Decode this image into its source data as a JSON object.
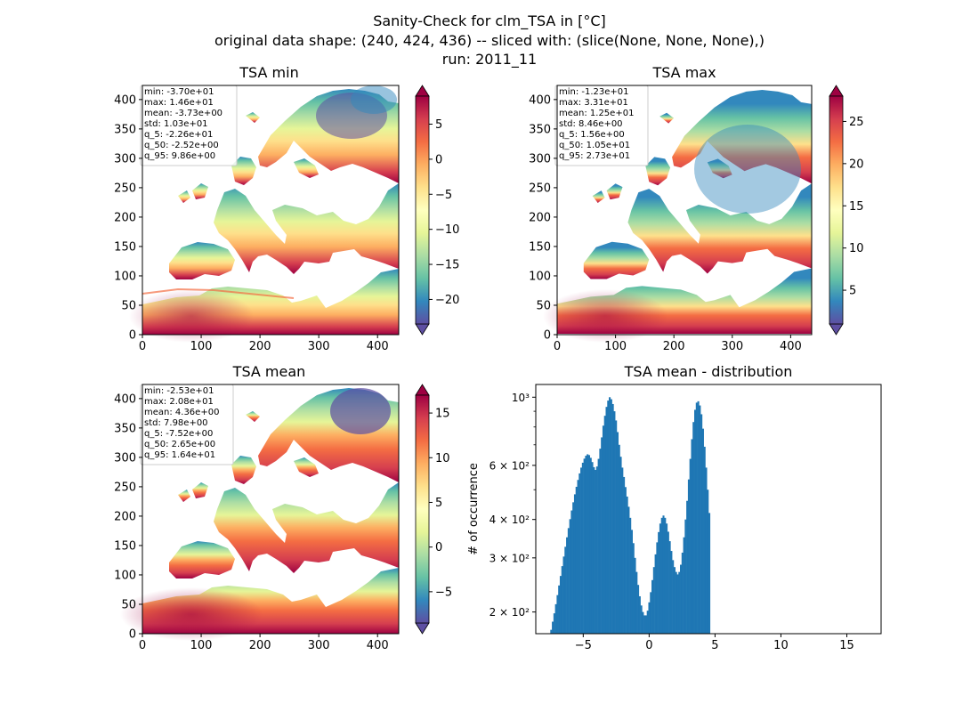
{
  "suptitle": {
    "line1": "Sanity-Check for clm_TSA in [°C]",
    "line2": "original data shape: (240, 424, 436) -- sliced with: (slice(None, None, None),)",
    "line3": "run: 2011_11"
  },
  "colormap": {
    "name": "Spectral_r",
    "stops": [
      "#5e4fa2",
      "#3288bd",
      "#66c2a5",
      "#abdda4",
      "#e6f598",
      "#ffffbf",
      "#fee08b",
      "#fdae61",
      "#f46d43",
      "#d53e4f",
      "#9e0142"
    ]
  },
  "chart_data": [
    {
      "type": "heatmap",
      "title": "TSA min",
      "xlim": [
        0,
        436
      ],
      "ylim": [
        0,
        424
      ],
      "xticks": [
        "0",
        "100",
        "200",
        "300",
        "400"
      ],
      "yticks": [
        "0",
        "50",
        "100",
        "150",
        "200",
        "250",
        "300",
        "350",
        "400"
      ],
      "colorbar": {
        "vmin": -23.5,
        "vmax": 9,
        "ticks": [
          "−20",
          "−15",
          "−10",
          "−5",
          "0",
          "5"
        ],
        "tick_values": [
          -20,
          -15,
          -10,
          -5,
          0,
          5
        ]
      },
      "stats": [
        "min: -3.70e+01",
        "max: 1.46e+01",
        "mean: -3.73e+00",
        "std: 1.03e+01",
        "q_5: -2.26e+01",
        "q_50: -2.52e+00",
        "q_95: 9.86e+00"
      ]
    },
    {
      "type": "heatmap",
      "title": "TSA max",
      "xlim": [
        0,
        436
      ],
      "ylim": [
        0,
        424
      ],
      "xticks": [
        "0",
        "100",
        "200",
        "300",
        "400"
      ],
      "yticks": [
        "0",
        "50",
        "100",
        "150",
        "200",
        "250",
        "300",
        "350",
        "400"
      ],
      "colorbar": {
        "vmin": 1,
        "vmax": 28,
        "ticks": [
          "5",
          "10",
          "15",
          "20",
          "25"
        ],
        "tick_values": [
          5,
          10,
          15,
          20,
          25
        ]
      },
      "stats": [
        "min: -1.23e+01",
        "max: 3.31e+01",
        "mean: 1.25e+01",
        "std: 8.46e+00",
        "q_5: 1.56e+00",
        "q_50: 1.05e+01",
        "q_95: 2.73e+01"
      ]
    },
    {
      "type": "heatmap",
      "title": "TSA mean",
      "xlim": [
        0,
        436
      ],
      "ylim": [
        0,
        424
      ],
      "xticks": [
        "0",
        "100",
        "200",
        "300",
        "400"
      ],
      "yticks": [
        "0",
        "50",
        "100",
        "150",
        "200",
        "250",
        "300",
        "350",
        "400"
      ],
      "colorbar": {
        "vmin": -8.5,
        "vmax": 17,
        "ticks": [
          "−5",
          "0",
          "5",
          "10",
          "15"
        ],
        "tick_values": [
          -5,
          0,
          5,
          10,
          15
        ]
      },
      "stats": [
        "min: -2.53e+01",
        "max: 2.08e+01",
        "mean: 4.36e+00",
        "std: 7.98e+00",
        "q_5: -7.52e+00",
        "q_50: 2.65e+00",
        "q_95: 1.64e+01"
      ]
    },
    {
      "type": "bar",
      "title": "TSA mean - distribution",
      "ylabel": "# of occurrence",
      "yscale": "log",
      "xlim": [
        -8.6,
        17.6
      ],
      "ylim": [
        170,
        1100
      ],
      "color": "#1f77b4",
      "xticks": [
        "−5",
        "0",
        "5",
        "10",
        "15"
      ],
      "xtick_values": [
        -5,
        0,
        5,
        10,
        15
      ],
      "yticks": [
        "2 × 10²",
        "3 × 10²",
        "4 × 10²",
        "6 × 10²",
        "10³"
      ],
      "ytick_values": [
        200,
        300,
        400,
        600,
        1000
      ],
      "minor_yticks": [
        500,
        700,
        800,
        900
      ],
      "bin_start": -7.5,
      "bin_width": 0.12,
      "values": [
        175,
        186,
        198,
        212,
        227,
        244,
        262,
        282,
        303,
        326,
        350,
        375,
        401,
        428,
        455,
        483,
        511,
        538,
        565,
        590,
        612,
        631,
        645,
        652,
        648,
        635,
        615,
        592,
        580,
        595,
        630,
        680,
        740,
        808,
        870,
        930,
        975,
        1000,
        985,
        950,
        900,
        840,
        770,
        700,
        640,
        590,
        550,
        510,
        475,
        440,
        405,
        370,
        335,
        300,
        270,
        245,
        225,
        210,
        200,
        195,
        195,
        202,
        215,
        232,
        254,
        280,
        308,
        337,
        364,
        388,
        405,
        412,
        405,
        388,
        365,
        340,
        316,
        295,
        280,
        270,
        265,
        270,
        285,
        312,
        350,
        400,
        460,
        540,
        630,
        730,
        830,
        910,
        960,
        970,
        940,
        880,
        790,
        690,
        590,
        500,
        420
      ]
    }
  ]
}
